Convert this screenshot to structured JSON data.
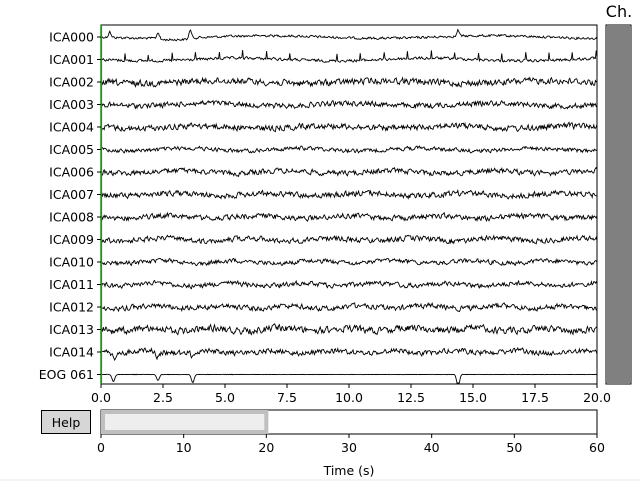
{
  "chart_data": [
    {
      "type": "line",
      "name": "raw-traces",
      "channels": [
        "ICA000",
        "ICA001",
        "ICA002",
        "ICA003",
        "ICA004",
        "ICA005",
        "ICA006",
        "ICA007",
        "ICA008",
        "ICA009",
        "ICA010",
        "ICA011",
        "ICA012",
        "ICA013",
        "ICA014",
        "EOG 061"
      ],
      "xlim": [
        0.0,
        20.0
      ],
      "xticks": [
        "0.0",
        "2.5",
        "5.0",
        "7.5",
        "10.0",
        "12.5",
        "15.0",
        "17.5",
        "20.0"
      ],
      "grid": false
    },
    {
      "type": "bar",
      "name": "time-scrollbar",
      "xlabel": "Time (s)",
      "xlim": [
        0,
        60
      ],
      "xticks": [
        "0",
        "10",
        "20",
        "30",
        "40",
        "50",
        "60"
      ],
      "view_window": [
        0,
        20
      ]
    }
  ],
  "scrollbar": {
    "channel_label": "Ch.",
    "view_fraction": [
      0.0,
      1.0
    ]
  },
  "help": {
    "label": "Help"
  },
  "colors": {
    "trace": "#000000",
    "start_line": "#00aa00",
    "scroll_fill": "#808080",
    "time_window": "#eeeeee"
  }
}
